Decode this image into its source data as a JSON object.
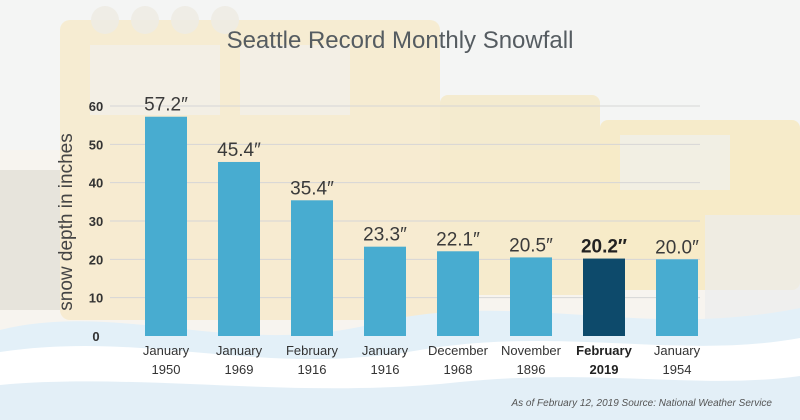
{
  "title": "Seattle Record Monthly Snowfall",
  "footnote": "As of February 12, 2019 Source: National Weather Service",
  "colors": {
    "bar": "#48acd0",
    "highlight": "#0d4a6b",
    "grid": "#d6d6d6"
  },
  "chart_data": {
    "type": "bar",
    "title": "Seattle Record Monthly Snowfall",
    "xlabel": "",
    "ylabel": "snow depth in inches",
    "ylim": [
      0,
      60
    ],
    "yticks": [
      0,
      10,
      20,
      30,
      40,
      50,
      60
    ],
    "grid": true,
    "categories": [
      [
        "January",
        "1950"
      ],
      [
        "January",
        "1969"
      ],
      [
        "February",
        "1916"
      ],
      [
        "January",
        "1916"
      ],
      [
        "December",
        "1968"
      ],
      [
        "November",
        "1896"
      ],
      [
        "February",
        "2019"
      ],
      [
        "January",
        "1954"
      ]
    ],
    "values": [
      57.2,
      45.4,
      35.4,
      23.3,
      22.1,
      20.5,
      20.2,
      20.0
    ],
    "value_labels": [
      "57.2″",
      "45.4″",
      "35.4″",
      "23.3″",
      "22.1″",
      "20.5″",
      "20.2″",
      "20.0″"
    ],
    "highlight_index": 6
  }
}
